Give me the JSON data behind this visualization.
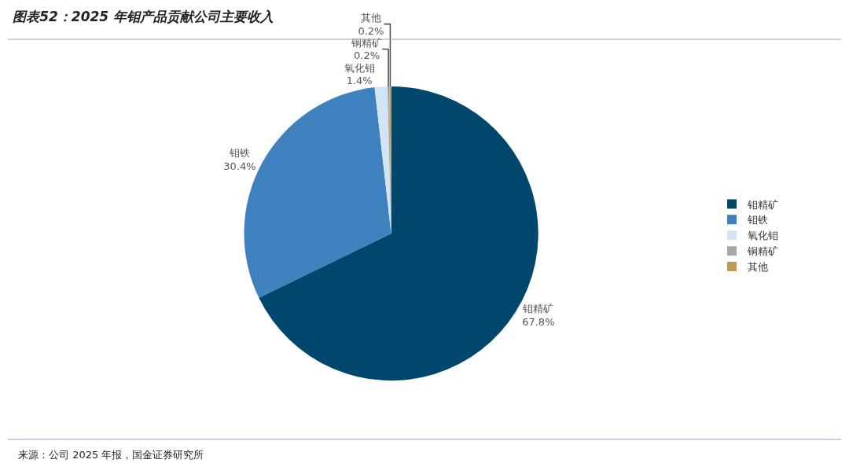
{
  "chart_data": {
    "type": "pie",
    "title": "图表52：2025 年钼产品贡献公司主要收入",
    "categories": [
      "钼精矿",
      "钼铁",
      "氧化钼",
      "铜精矿",
      "其他"
    ],
    "values": [
      67.8,
      30.4,
      1.4,
      0.2,
      0.2
    ],
    "value_labels": [
      "67.8%",
      "30.4%",
      "1.4%",
      "0.2%",
      "0.2%"
    ],
    "colors": [
      "#00476e",
      "#3f80bf",
      "#d3e5f4",
      "#a6a6a6",
      "#c09a55"
    ],
    "legend": "right",
    "annotations": [
      "来源：公司 2025 年报，国金证券研究所"
    ]
  }
}
